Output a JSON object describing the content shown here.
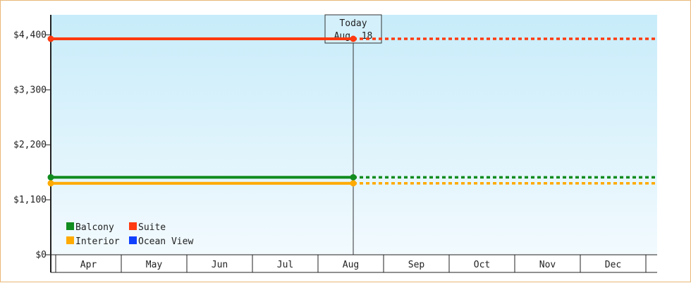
{
  "chart_data": {
    "type": "line",
    "title": "",
    "xlabel": "",
    "ylabel": "",
    "categories": [
      "Apr",
      "May",
      "Jun",
      "Jul",
      "Aug",
      "Sep",
      "Oct",
      "Nov",
      "Dec"
    ],
    "ylim": [
      0,
      4800
    ],
    "yticks": [
      0,
      1100,
      2200,
      3300,
      4400
    ],
    "ytick_labels": [
      "$0",
      "$1,100",
      "$2,200",
      "$3,300",
      "$4,400"
    ],
    "today": {
      "label_line1": "Today",
      "label_line2": "Aug. 18",
      "x": "Aug"
    },
    "series": [
      {
        "name": "Balcony",
        "color": "#118c1f",
        "start": "Apr",
        "observed_end": "Aug",
        "observed": [
          1550,
          1550
        ],
        "projected_end": "Dec",
        "projected": 1550
      },
      {
        "name": "Suite",
        "color": "#ff3a10",
        "start": "Apr",
        "observed_end": "Aug",
        "observed": [
          4320,
          4320
        ],
        "projected_end": "Dec",
        "projected": 4320
      },
      {
        "name": "Interior",
        "color": "#ffaa00",
        "start": "Apr",
        "observed_end": "Aug",
        "observed": [
          1430,
          1430
        ],
        "projected_end": "Dec",
        "projected": 1430
      },
      {
        "name": "Ocean View",
        "color": "#1040ff",
        "start": null,
        "observed_end": null,
        "observed": [],
        "projected_end": null,
        "projected": null
      }
    ],
    "legend_position": "bottom-left",
    "grid": false,
    "background_gradient": [
      "#c8ecfa",
      "#f2fafe"
    ]
  }
}
